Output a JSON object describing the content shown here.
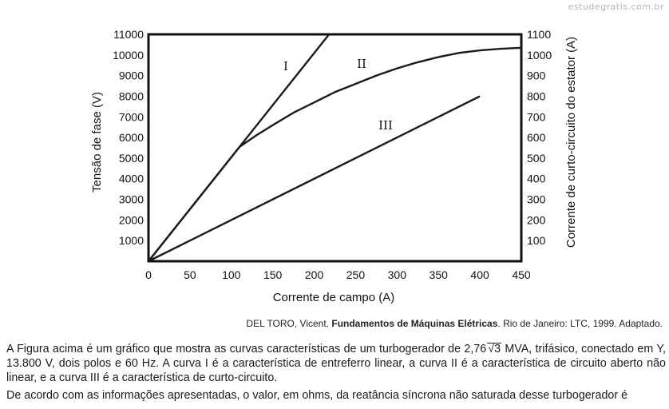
{
  "watermark": "estudegratis.com.br",
  "chart_data": {
    "type": "line",
    "xlabel": "Corrente de campo (A)",
    "ylabel_left": "Tensão de fase (V)",
    "ylabel_right": "Corrente de curto-circuito do estator (A)",
    "x_range": [
      0,
      450
    ],
    "y_left_range": [
      0,
      11000
    ],
    "y_right_range": [
      0,
      1100
    ],
    "x_ticks": [
      "0",
      "50",
      "100",
      "150",
      "200",
      "250",
      "300",
      "350",
      "400",
      "450"
    ],
    "y_left_ticks": [
      "1000",
      "2000",
      "3000",
      "4000",
      "5000",
      "6000",
      "7000",
      "8000",
      "9000",
      "10000",
      "11000"
    ],
    "y_right_ticks": [
      "100",
      "200",
      "300",
      "400",
      "500",
      "600",
      "700",
      "800",
      "900",
      "1000",
      "1100"
    ],
    "grid": false,
    "series": [
      {
        "name": "I",
        "axis": "left",
        "x": [
          0,
          218
        ],
        "y": [
          0,
          11000
        ]
      },
      {
        "name": "II",
        "axis": "left",
        "x": [
          0,
          110,
          130,
          150,
          175,
          200,
          225,
          250,
          275,
          300,
          325,
          350,
          375,
          400,
          425,
          450
        ],
        "y": [
          0,
          5550,
          6100,
          6600,
          7200,
          7700,
          8200,
          8600,
          9000,
          9350,
          9650,
          9900,
          10100,
          10220,
          10300,
          10350
        ]
      },
      {
        "name": "III",
        "axis": "right",
        "x": [
          0,
          400
        ],
        "y": [
          0,
          800
        ]
      }
    ]
  },
  "citation": {
    "author": "DEL TORO, Vicent. ",
    "title": "Fundamentos de Máquinas Elétricas",
    "rest": ". Rio de Janeiro: LTC, 1999. Adaptado."
  },
  "problem": {
    "p1_before": "A Figura acima é um gráfico que mostra as curvas características de um turbogerador de 2,76",
    "p1_sqrt": "3",
    "p1_after": " MVA, trifásico, conectado em Y, 13.800 V, dois polos e 60 Hz. A curva I é a característica de entreferro linear, a curva II é a característica de circuito aberto não linear, e a curva III é a característica de curto-circuito.",
    "p2": "De acordo com as informações apresentadas, o valor, em ohms, da reatância síncrona não saturada desse turbogerador é"
  }
}
